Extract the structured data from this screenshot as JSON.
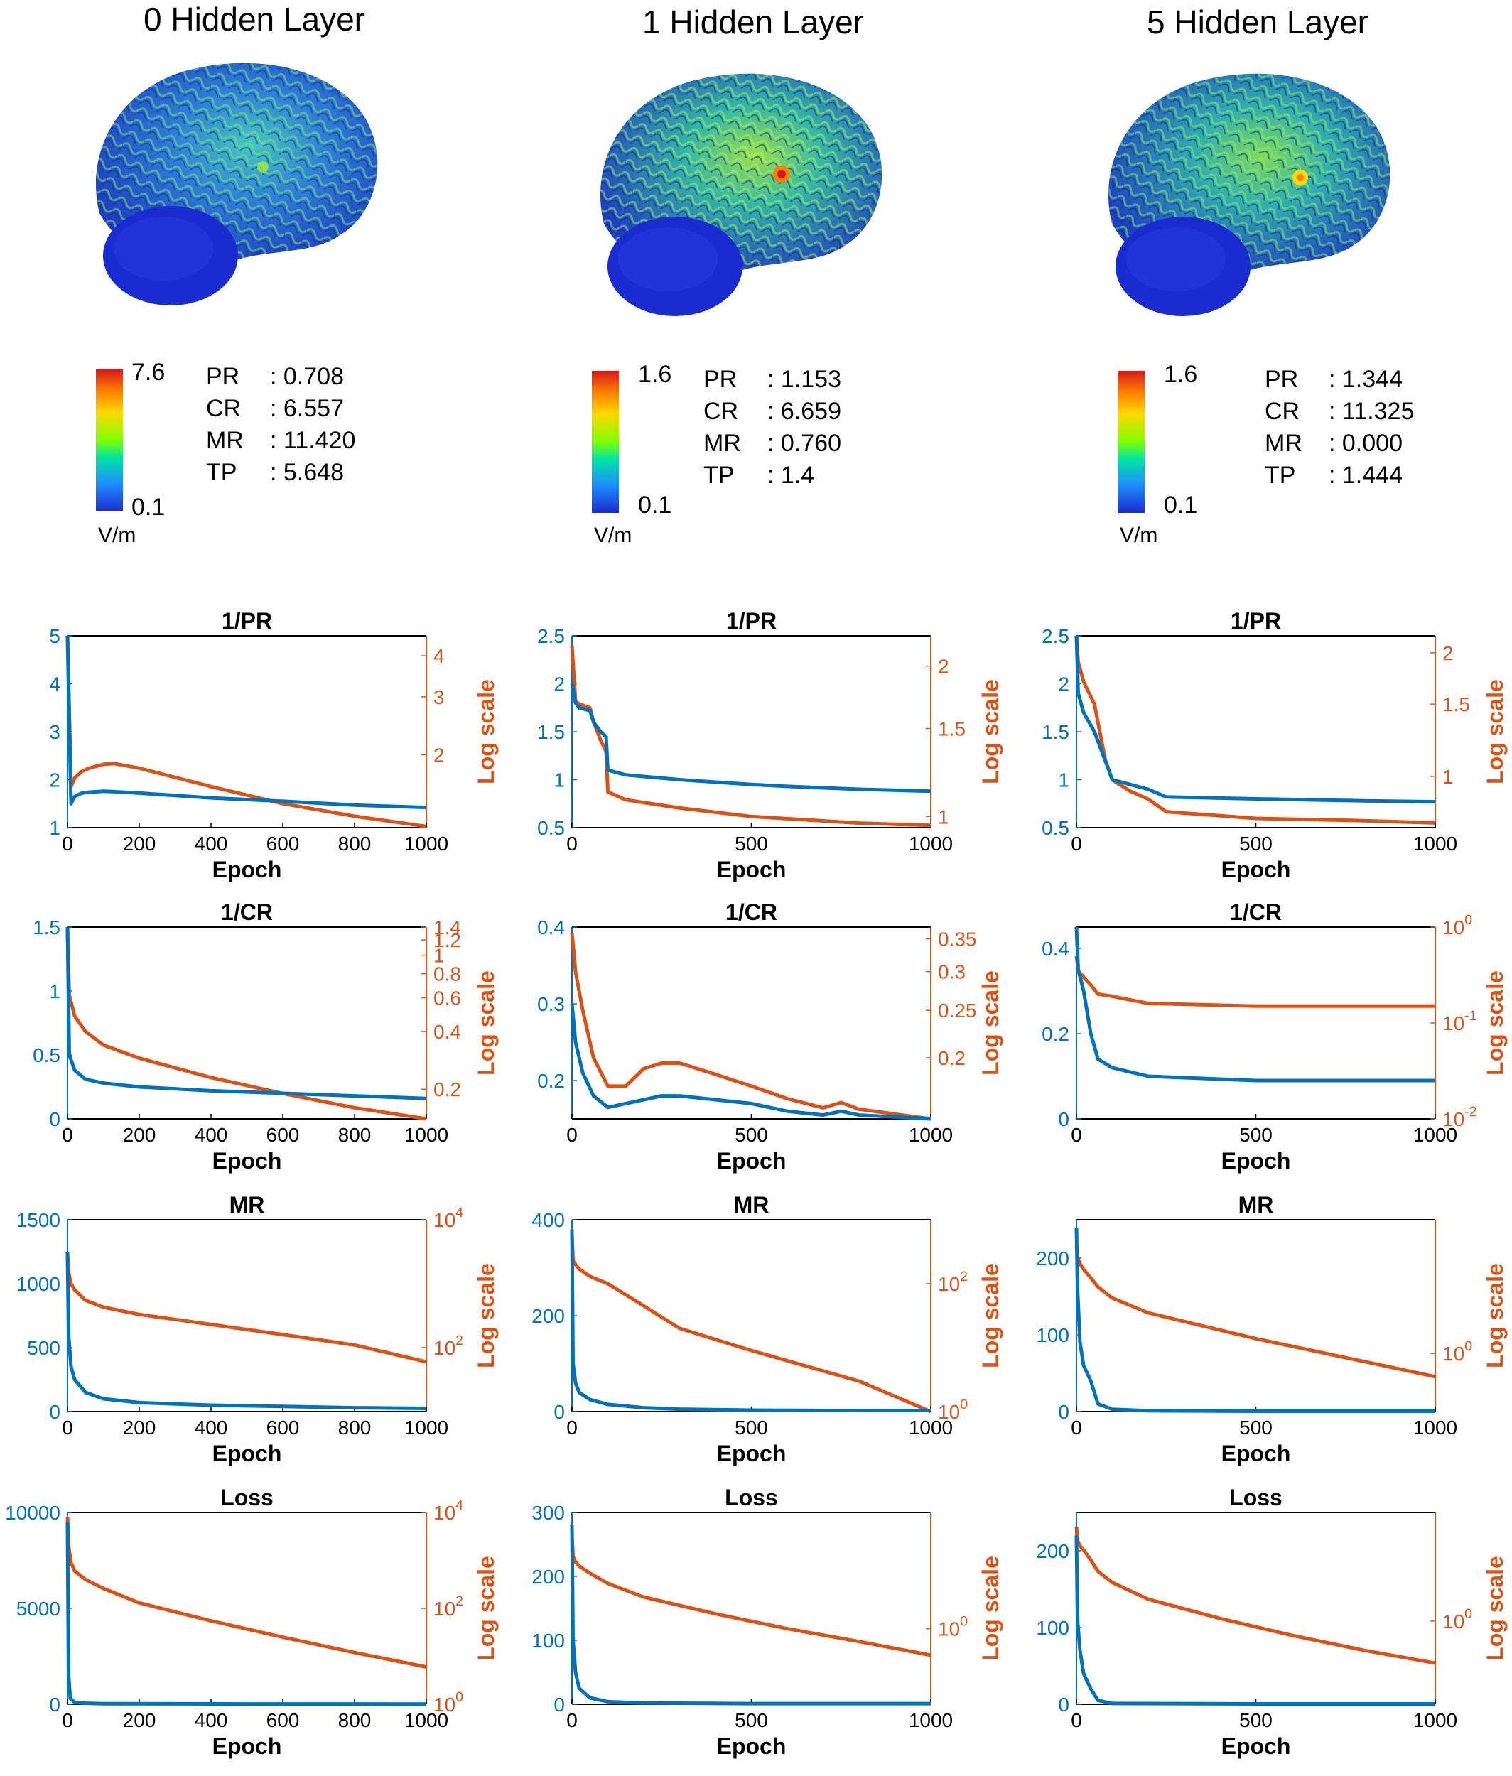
{
  "columns": [
    {
      "title": "0 Hidden Layer",
      "colorbar": {
        "max": "7.6",
        "min": "0.1",
        "unit": "V/m"
      },
      "metrics": [
        {
          "key": "PR",
          "value": ": 0.708"
        },
        {
          "key": "CR",
          "value": ": 6.557"
        },
        {
          "key": "MR",
          "value": ": 11.420"
        },
        {
          "key": "TP",
          "value": ": 5.648"
        }
      ]
    },
    {
      "title": "1 Hidden Layer",
      "colorbar": {
        "max": "1.6",
        "min": "0.1",
        "unit": "V/m"
      },
      "metrics": [
        {
          "key": "PR",
          "value": ": 1.153"
        },
        {
          "key": "CR",
          "value": ": 6.659"
        },
        {
          "key": "MR",
          "value": ": 0.760"
        },
        {
          "key": "TP",
          "value": ": 1.4"
        }
      ]
    },
    {
      "title": "5 Hidden Layer",
      "colorbar": {
        "max": "1.6",
        "min": "0.1",
        "unit": "V/m"
      },
      "metrics": [
        {
          "key": "PR",
          "value": ": 1.344"
        },
        {
          "key": "CR",
          "value": ": 11.325"
        },
        {
          "key": "MR",
          "value": ": 0.000"
        },
        {
          "key": "TP",
          "value": ": 1.444"
        }
      ]
    }
  ],
  "colors": {
    "linear": "#0072BD",
    "log": "#D95319"
  },
  "chart_data": [
    {
      "type": "line",
      "title": "1/PR",
      "xlabel": "Epoch",
      "ylabel_right": "Log scale",
      "xlim": [
        0,
        1000
      ],
      "xticks": [
        "0",
        "200",
        "400",
        "600",
        "800",
        "1000"
      ],
      "left": {
        "ylim": [
          1,
          5
        ],
        "ticks": [
          "1",
          "2",
          "3",
          "4",
          "5"
        ],
        "x": [
          0,
          10,
          20,
          40,
          60,
          100,
          130,
          200,
          400,
          600,
          800,
          1000
        ],
        "y": [
          5,
          1.5,
          1.65,
          1.72,
          1.74,
          1.76,
          1.75,
          1.72,
          1.62,
          1.55,
          1.47,
          1.42
        ]
      },
      "right": {
        "scale": "log",
        "ylim": [
          1.2,
          4.6
        ],
        "ticks": [
          "2",
          "3",
          "4"
        ],
        "x": [
          0,
          10,
          20,
          40,
          60,
          100,
          130,
          200,
          400,
          600,
          800,
          1000
        ],
        "y": [
          4.6,
          1.6,
          1.7,
          1.78,
          1.82,
          1.87,
          1.88,
          1.82,
          1.6,
          1.42,
          1.3,
          1.21
        ]
      }
    },
    {
      "type": "line",
      "title": "1/PR",
      "xlabel": "Epoch",
      "ylabel_right": "Log scale",
      "xlim": [
        0,
        1000
      ],
      "xticks": [
        "0",
        "500",
        "1000"
      ],
      "left": {
        "ylim": [
          0.5,
          2.5
        ],
        "ticks": [
          "0.5",
          "1",
          "1.5",
          "2",
          "2.5"
        ],
        "x": [
          0,
          10,
          20,
          50,
          60,
          80,
          95,
          100,
          150,
          300,
          500,
          600,
          800,
          1000
        ],
        "y": [
          2.0,
          1.8,
          1.75,
          1.72,
          1.6,
          1.5,
          1.45,
          1.1,
          1.05,
          1.0,
          0.95,
          0.93,
          0.9,
          0.88
        ]
      },
      "right": {
        "scale": "log",
        "ylim": [
          0.95,
          2.3
        ],
        "ticks": [
          "1",
          "1.5",
          "2"
        ],
        "x": [
          0,
          10,
          20,
          50,
          60,
          80,
          95,
          100,
          150,
          300,
          500,
          600,
          800,
          1000
        ],
        "y": [
          2.2,
          1.7,
          1.68,
          1.65,
          1.55,
          1.42,
          1.35,
          1.12,
          1.08,
          1.04,
          1.0,
          0.99,
          0.97,
          0.96
        ]
      }
    },
    {
      "type": "line",
      "title": "1/PR",
      "xlabel": "Epoch",
      "ylabel_right": "Log scale",
      "xlim": [
        0,
        1000
      ],
      "xticks": [
        "0",
        "500",
        "1000"
      ],
      "left": {
        "ylim": [
          0.5,
          2.5
        ],
        "ticks": [
          "0.5",
          "1",
          "1.5",
          "2",
          "2.5"
        ],
        "x": [
          0,
          5,
          20,
          50,
          80,
          100,
          150,
          200,
          250,
          500,
          800,
          1000
        ],
        "y": [
          2.5,
          1.9,
          1.7,
          1.5,
          1.2,
          1.0,
          0.95,
          0.9,
          0.82,
          0.8,
          0.78,
          0.77
        ]
      },
      "right": {
        "scale": "log",
        "ylim": [
          0.75,
          2.2
        ],
        "ticks": [
          "1",
          "1.5",
          "2"
        ],
        "x": [
          0,
          5,
          20,
          50,
          80,
          100,
          150,
          200,
          250,
          500,
          800,
          1000
        ],
        "y": [
          2.2,
          1.9,
          1.7,
          1.5,
          1.1,
          0.98,
          0.92,
          0.88,
          0.82,
          0.79,
          0.78,
          0.77
        ]
      }
    },
    {
      "type": "line",
      "title": "1/CR",
      "xlabel": "Epoch",
      "ylabel_right": "Log scale",
      "xlim": [
        0,
        1000
      ],
      "xticks": [
        "0",
        "200",
        "400",
        "600",
        "800",
        "1000"
      ],
      "left": {
        "ylim": [
          0,
          1.5
        ],
        "ticks": [
          "0",
          "0.5",
          "1",
          "1.5"
        ],
        "x": [
          0,
          5,
          20,
          50,
          100,
          200,
          400,
          600,
          800,
          1000
        ],
        "y": [
          1.5,
          0.5,
          0.38,
          0.31,
          0.28,
          0.25,
          0.22,
          0.2,
          0.18,
          0.16
        ]
      },
      "right": {
        "scale": "log",
        "ylim": [
          0.14,
          1.4
        ],
        "ticks": [
          "0.2",
          "0.4",
          "0.6",
          "0.8",
          "1",
          "1.2",
          "1.4"
        ],
        "x": [
          0,
          5,
          20,
          50,
          100,
          200,
          400,
          600,
          800,
          1000
        ],
        "y": [
          1.4,
          0.62,
          0.48,
          0.4,
          0.34,
          0.29,
          0.23,
          0.19,
          0.16,
          0.14
        ]
      }
    },
    {
      "type": "line",
      "title": "1/CR",
      "xlabel": "Epoch",
      "ylabel_right": "Log scale",
      "xlim": [
        0,
        1000
      ],
      "xticks": [
        "0",
        "500",
        "1000"
      ],
      "left": {
        "ylim": [
          0.15,
          0.4
        ],
        "ticks": [
          "0.2",
          "0.3",
          "0.4"
        ],
        "x": [
          0,
          10,
          30,
          60,
          100,
          150,
          200,
          250,
          300,
          400,
          500,
          600,
          700,
          750,
          800,
          1000
        ],
        "y": [
          0.3,
          0.25,
          0.21,
          0.18,
          0.165,
          0.17,
          0.175,
          0.18,
          0.18,
          0.175,
          0.17,
          0.16,
          0.155,
          0.16,
          0.155,
          0.15
        ]
      },
      "right": {
        "scale": "log",
        "ylim": [
          0.15,
          0.37
        ],
        "ticks": [
          "0.2",
          "0.25",
          "0.3",
          "0.35"
        ],
        "x": [
          0,
          10,
          30,
          60,
          100,
          150,
          200,
          250,
          300,
          400,
          500,
          600,
          700,
          750,
          800,
          1000
        ],
        "y": [
          0.36,
          0.3,
          0.25,
          0.2,
          0.175,
          0.175,
          0.19,
          0.195,
          0.195,
          0.185,
          0.175,
          0.165,
          0.158,
          0.162,
          0.157,
          0.15
        ]
      }
    },
    {
      "type": "line",
      "title": "1/CR",
      "xlabel": "Epoch",
      "ylabel_right": "Log scale",
      "xlim": [
        0,
        1000
      ],
      "xticks": [
        "0",
        "500",
        "1000"
      ],
      "left": {
        "ylim": [
          0,
          0.45
        ],
        "ticks": [
          "0",
          "0.2",
          "0.4"
        ],
        "x": [
          0,
          5,
          20,
          40,
          60,
          100,
          200,
          500,
          800,
          1000
        ],
        "y": [
          0.45,
          0.35,
          0.3,
          0.2,
          0.14,
          0.12,
          0.1,
          0.09,
          0.09,
          0.09
        ]
      },
      "right": {
        "scale": "log",
        "ylim": [
          0.01,
          1
        ],
        "ticks": [
          "10^-2",
          "10^-1",
          "10^0"
        ],
        "x": [
          0,
          5,
          20,
          40,
          60,
          100,
          200,
          500,
          800,
          1000
        ],
        "y": [
          0.5,
          0.35,
          0.3,
          0.25,
          0.2,
          0.19,
          0.16,
          0.15,
          0.15,
          0.15
        ]
      }
    },
    {
      "type": "line",
      "title": "MR",
      "xlabel": "Epoch",
      "ylabel_right": "Log scale",
      "xlim": [
        0,
        1000
      ],
      "xticks": [
        "0",
        "200",
        "400",
        "600",
        "800",
        "1000"
      ],
      "left": {
        "ylim": [
          0,
          1500
        ],
        "ticks": [
          "0",
          "500",
          "1000",
          "1500"
        ],
        "x": [
          0,
          3,
          10,
          20,
          50,
          100,
          200,
          400,
          600,
          800,
          1000
        ],
        "y": [
          1250,
          600,
          350,
          250,
          150,
          100,
          70,
          50,
          40,
          30,
          25
        ]
      },
      "right": {
        "scale": "log",
        "ylim": [
          10,
          10000
        ],
        "ticks": [
          "10^2",
          "10^4"
        ],
        "x": [
          0,
          3,
          10,
          20,
          50,
          100,
          200,
          400,
          600,
          800,
          1000
        ],
        "y": [
          3000,
          1500,
          1000,
          800,
          550,
          430,
          330,
          230,
          160,
          110,
          60
        ]
      }
    },
    {
      "type": "line",
      "title": "MR",
      "xlabel": "Epoch",
      "ylabel_right": "Log scale",
      "xlim": [
        0,
        1000
      ],
      "xticks": [
        "0",
        "500",
        "1000"
      ],
      "left": {
        "ylim": [
          0,
          400
        ],
        "ticks": [
          "0",
          "200",
          "400"
        ],
        "x": [
          0,
          3,
          10,
          20,
          50,
          100,
          200,
          300,
          500,
          800,
          1000
        ],
        "y": [
          380,
          100,
          60,
          40,
          25,
          15,
          8,
          5,
          3,
          2,
          2
        ]
      },
      "right": {
        "scale": "log",
        "ylim": [
          1,
          1000
        ],
        "ticks": [
          "10^0",
          "10^2"
        ],
        "x": [
          0,
          3,
          10,
          20,
          50,
          100,
          200,
          300,
          500,
          800,
          1000
        ],
        "y": [
          600,
          230,
          200,
          170,
          130,
          100,
          45,
          20,
          9,
          3,
          1
        ]
      }
    },
    {
      "type": "line",
      "title": "MR",
      "xlabel": "Epoch",
      "ylabel_right": "Log scale",
      "xlim": [
        0,
        1000
      ],
      "xticks": [
        "0",
        "500",
        "1000"
      ],
      "left": {
        "ylim": [
          0,
          250
        ],
        "ticks": [
          "0",
          "100",
          "200"
        ],
        "x": [
          0,
          3,
          10,
          20,
          40,
          60,
          100,
          200,
          500,
          1000
        ],
        "y": [
          240,
          160,
          90,
          60,
          40,
          10,
          3,
          1,
          0.5,
          0.5
        ]
      },
      "right": {
        "scale": "log",
        "ylim": [
          0.1,
          200
        ],
        "ticks": [
          "10^0"
        ],
        "x": [
          0,
          3,
          10,
          20,
          40,
          60,
          100,
          200,
          500,
          1000
        ],
        "y": [
          70,
          45,
          35,
          28,
          20,
          14,
          9,
          5,
          1.8,
          0.4
        ]
      }
    },
    {
      "type": "line",
      "title": "Loss",
      "xlabel": "Epoch",
      "ylabel_right": "Log scale",
      "xlim": [
        0,
        1000
      ],
      "xticks": [
        "0",
        "200",
        "400",
        "600",
        "800",
        "1000"
      ],
      "left": {
        "ylim": [
          0,
          10000
        ],
        "ticks": [
          "0",
          "5000",
          "10000"
        ],
        "x": [
          0,
          3,
          8,
          20,
          50,
          100,
          500,
          1000
        ],
        "y": [
          9500,
          1500,
          300,
          100,
          50,
          30,
          15,
          10
        ]
      },
      "right": {
        "scale": "log",
        "ylim": [
          1,
          10000
        ],
        "ticks": [
          "10^0",
          "10^2",
          "10^4"
        ],
        "x": [
          0,
          3,
          10,
          20,
          50,
          100,
          200,
          400,
          600,
          800,
          1000
        ],
        "y": [
          8000,
          2000,
          900,
          600,
          400,
          260,
          130,
          55,
          25,
          12,
          6
        ]
      }
    },
    {
      "type": "line",
      "title": "Loss",
      "xlabel": "Epoch",
      "ylabel_right": "Log scale",
      "xlim": [
        0,
        1000
      ],
      "xticks": [
        "0",
        "500",
        "1000"
      ],
      "left": {
        "ylim": [
          0,
          300
        ],
        "ticks": [
          "0",
          "100",
          "200",
          "300"
        ],
        "x": [
          0,
          3,
          10,
          20,
          50,
          100,
          200,
          500,
          1000
        ],
        "y": [
          280,
          100,
          50,
          25,
          10,
          4,
          2,
          1,
          1
        ]
      },
      "right": {
        "scale": "log",
        "ylim": [
          0.05,
          100
        ],
        "ticks": [
          "10^0"
        ],
        "x": [
          0,
          3,
          10,
          20,
          50,
          100,
          200,
          400,
          600,
          800,
          1000
        ],
        "y": [
          40,
          18,
          14,
          12,
          9,
          6,
          3.5,
          1.8,
          1.0,
          0.6,
          0.35
        ]
      }
    },
    {
      "type": "line",
      "title": "Loss",
      "xlabel": "Epoch",
      "ylabel_right": "Log scale",
      "xlim": [
        0,
        1000
      ],
      "xticks": [
        "0",
        "500",
        "1000"
      ],
      "left": {
        "ylim": [
          0,
          250
        ],
        "ticks": [
          "0",
          "100",
          "200"
        ],
        "x": [
          0,
          3,
          10,
          20,
          40,
          60,
          100,
          500,
          1000
        ],
        "y": [
          220,
          110,
          70,
          40,
          20,
          5,
          1,
          0.5,
          0.5
        ]
      },
      "right": {
        "scale": "log",
        "ylim": [
          0.05,
          50
        ],
        "ticks": [
          "10^0"
        ],
        "x": [
          0,
          3,
          10,
          20,
          40,
          60,
          100,
          200,
          400,
          600,
          800,
          1000
        ],
        "y": [
          30,
          18,
          15,
          13,
          9,
          6,
          4,
          2.2,
          1.1,
          0.6,
          0.35,
          0.22
        ]
      }
    }
  ]
}
